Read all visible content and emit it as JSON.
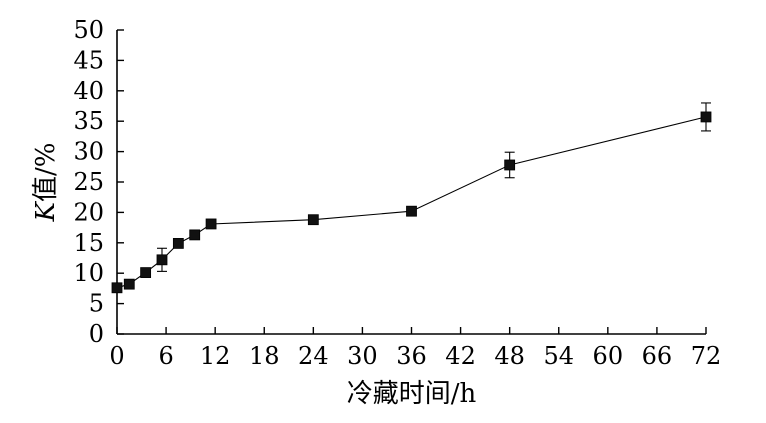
{
  "chart_data": {
    "type": "line",
    "title": "",
    "xlabel": "冷藏时间/h",
    "ylabel_italic": "K",
    "ylabel_rest": "值/%",
    "xlim": [
      0,
      72
    ],
    "ylim": [
      0,
      50
    ],
    "xticks": [
      0,
      6,
      12,
      18,
      24,
      30,
      36,
      42,
      48,
      54,
      60,
      66,
      72
    ],
    "xtick_labels": [
      "0",
      "6",
      "12",
      "18",
      "24",
      "30",
      "36",
      "42",
      "48",
      "54",
      "60",
      "66",
      "72"
    ],
    "yticks": [
      0,
      5,
      10,
      15,
      20,
      25,
      30,
      35,
      40,
      45,
      50
    ],
    "ytick_labels": [
      "0",
      "5",
      "10",
      "15",
      "20",
      "25",
      "30",
      "35",
      "40",
      "45",
      "50"
    ],
    "grid": false,
    "series": [
      {
        "marker": "square",
        "color": "#000000",
        "x": [
          0,
          1.5,
          3.5,
          5.5,
          7.5,
          9.5,
          11.5,
          24,
          36,
          48,
          72
        ],
        "y": [
          7.6,
          8.2,
          10.1,
          12.2,
          14.9,
          16.3,
          18.1,
          18.8,
          20.2,
          27.8,
          35.7
        ],
        "err": [
          0.4,
          0.4,
          0.4,
          1.9,
          0.4,
          0.4,
          0.4,
          0.4,
          0.7,
          2.1,
          2.3
        ]
      }
    ]
  }
}
